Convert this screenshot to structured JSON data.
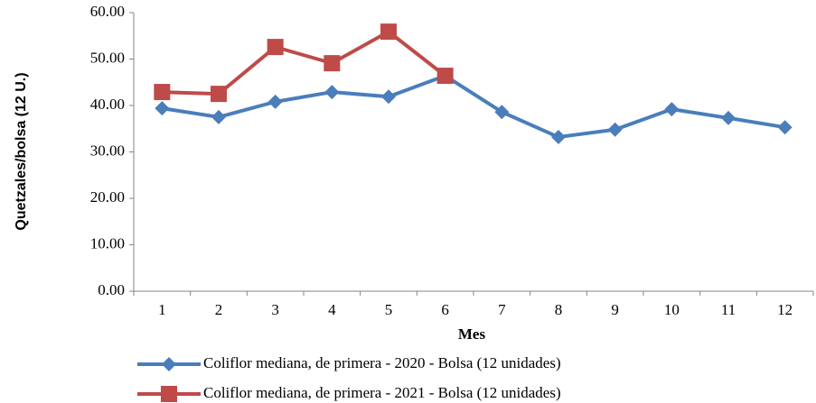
{
  "chart_data": {
    "type": "line",
    "x_label": "Mes",
    "y_label": "Quetzales/bolsa (12 U.)",
    "categories": [
      "1",
      "2",
      "3",
      "4",
      "5",
      "6",
      "7",
      "8",
      "9",
      "10",
      "11",
      "12"
    ],
    "series": [
      {
        "name": "Coliflor mediana, de primera - 2020 - Bolsa (12 unidades)",
        "color": "#4a7ebb",
        "marker": "diamond",
        "values": [
          39.4,
          37.5,
          40.8,
          42.9,
          41.9,
          46.4,
          38.6,
          33.2,
          34.8,
          39.2,
          37.3,
          35.3
        ]
      },
      {
        "name": "Coliflor mediana, de primera - 2021 - Bolsa (12 unidades)",
        "color": "#be4b48",
        "marker": "square",
        "values": [
          42.9,
          42.5,
          52.6,
          49.1,
          55.9,
          46.4,
          null,
          null,
          null,
          null,
          null,
          null
        ]
      }
    ],
    "ylim": [
      0,
      60
    ],
    "yticks": [
      {
        "value": 0,
        "label": "0.00"
      },
      {
        "value": 10,
        "label": "10.00"
      },
      {
        "value": 20,
        "label": "20.00"
      },
      {
        "value": 30,
        "label": "30.00"
      },
      {
        "value": 40,
        "label": "40.00"
      },
      {
        "value": 50,
        "label": "50.00"
      },
      {
        "value": 60,
        "label": "60.00"
      }
    ],
    "grid": false,
    "legend": "bottom"
  }
}
